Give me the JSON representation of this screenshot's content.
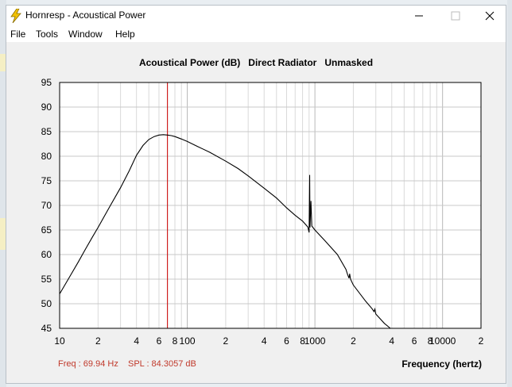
{
  "window": {
    "title": "Hornresp - Acoustical Power"
  },
  "menu": {
    "items": [
      "File",
      "Tools",
      "Window",
      "Help"
    ]
  },
  "chart_data": {
    "type": "line",
    "title": "Acoustical Power (dB)   Direct Radiator   Unmasked",
    "xlabel": "Frequency (hertz)",
    "ylabel": "",
    "xscale": "log",
    "xlim": [
      10,
      20000
    ],
    "ylim": [
      45,
      95
    ],
    "grid": true,
    "y_ticks": [
      95,
      90,
      85,
      80,
      75,
      70,
      65,
      60,
      55,
      50,
      45
    ],
    "x_tick_labels": [
      {
        "value": 10,
        "label": "10"
      },
      {
        "value": 20,
        "label": "2"
      },
      {
        "value": 40,
        "label": "4"
      },
      {
        "value": 60,
        "label": "6"
      },
      {
        "value": 80,
        "label": "8"
      },
      {
        "value": 100,
        "label": "100"
      },
      {
        "value": 200,
        "label": "2"
      },
      {
        "value": 400,
        "label": "4"
      },
      {
        "value": 600,
        "label": "6"
      },
      {
        "value": 800,
        "label": "8"
      },
      {
        "value": 1000,
        "label": "1000"
      },
      {
        "value": 2000,
        "label": "2"
      },
      {
        "value": 4000,
        "label": "4"
      },
      {
        "value": 6000,
        "label": "6"
      },
      {
        "value": 8000,
        "label": "8"
      },
      {
        "value": 10000,
        "label": "10000"
      },
      {
        "value": 20000,
        "label": "2"
      }
    ],
    "series": [
      {
        "color": "#000000",
        "points": [
          [
            10,
            52.0
          ],
          [
            12,
            55.5
          ],
          [
            14,
            58.5
          ],
          [
            16,
            61.2
          ],
          [
            18,
            63.5
          ],
          [
            20,
            65.5
          ],
          [
            25,
            70.0
          ],
          [
            30,
            73.6
          ],
          [
            35,
            77.0
          ],
          [
            40,
            80.2
          ],
          [
            45,
            82.2
          ],
          [
            50,
            83.4
          ],
          [
            55,
            84.0
          ],
          [
            60,
            84.3
          ],
          [
            65,
            84.38
          ],
          [
            69.94,
            84.3
          ],
          [
            75,
            84.2
          ],
          [
            80,
            84.0
          ],
          [
            90,
            83.5
          ],
          [
            100,
            83.0
          ],
          [
            120,
            82.0
          ],
          [
            150,
            80.8
          ],
          [
            200,
            79.0
          ],
          [
            250,
            77.5
          ],
          [
            300,
            76.0
          ],
          [
            400,
            73.5
          ],
          [
            500,
            71.5
          ],
          [
            600,
            69.5
          ],
          [
            700,
            68.0
          ],
          [
            800,
            66.8
          ],
          [
            880,
            65.6
          ],
          [
            900,
            64.5
          ],
          [
            910,
            76.2
          ],
          [
            915,
            65.5
          ],
          [
            930,
            70.9
          ],
          [
            945,
            65.8
          ],
          [
            1000,
            65.0
          ],
          [
            1200,
            62.8
          ],
          [
            1500,
            60.0
          ],
          [
            1750,
            57.0
          ],
          [
            1800,
            56.0
          ],
          [
            1850,
            55.2
          ],
          [
            1870,
            56.1
          ],
          [
            1900,
            55.0
          ],
          [
            2000,
            53.8
          ],
          [
            2500,
            50.5
          ],
          [
            2800,
            49.0
          ],
          [
            2900,
            48.4
          ],
          [
            2950,
            48.9
          ],
          [
            3000,
            47.9
          ],
          [
            3500,
            46.0
          ],
          [
            3900,
            45.0
          ]
        ]
      }
    ],
    "marker": {
      "frequency": 69.94,
      "color": "#cc0000"
    },
    "readout": {
      "freq_text": "Freq : 69.94 Hz",
      "spl_text": "SPL : 84.3057 dB"
    }
  }
}
